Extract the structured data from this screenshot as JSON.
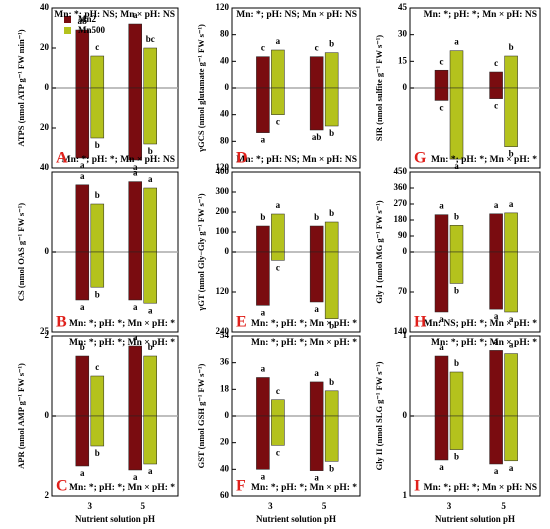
{
  "chart_data": [
    {
      "type": "bar",
      "panel": "A",
      "ylabel": "ATPS (nmol ATP g⁻¹ FW min⁻¹)",
      "annotation_top": "Mn: *; pH: NS; Mn × pH: NS",
      "annotation_bottom": "Mn: *; pH: *; Mn × pH: NS",
      "ylim": [
        -40,
        40
      ],
      "yticks": [
        40,
        20,
        0,
        {
          "value": -20,
          "label": "20"
        },
        {
          "value": -40,
          "label": "40"
        }
      ],
      "series": [
        {
          "name": "Mn2",
          "color": "#7a0c10",
          "values": [
            29,
            32
          ],
          "values_lower": [
            -35,
            -36
          ],
          "letters": [
            "ab",
            "a"
          ],
          "letters_lower": [
            "a",
            "a"
          ]
        },
        {
          "name": "Mn500",
          "color": "#b4c21d",
          "values": [
            16,
            20
          ],
          "values_lower": [
            -25,
            -28
          ],
          "letters": [
            "c",
            "bc"
          ],
          "letters_lower": [
            "b",
            "b"
          ]
        }
      ]
    },
    {
      "type": "bar",
      "panel": "B",
      "ylabel": "CS (nmol OAS g⁻¹ FW s⁻¹)",
      "annotation_bottom": "Mn: *; pH: *; Mn × pH: *",
      "ylim": [
        -25,
        25
      ],
      "yticks": [
        0,
        {
          "value": -25,
          "label": "25"
        }
      ],
      "series": [
        {
          "color": "#7a0c10",
          "values": [
            21,
            22
          ],
          "values_lower": [
            -15,
            -15
          ],
          "letters": [
            "a",
            "a"
          ],
          "letters_lower": [
            "a",
            "a"
          ]
        },
        {
          "color": "#b4c21d",
          "values": [
            15,
            20
          ],
          "values_lower": [
            -11,
            -16
          ],
          "letters": [
            "b",
            "a"
          ],
          "letters_lower": [
            "b",
            "a"
          ]
        }
      ]
    },
    {
      "type": "bar",
      "panel": "C",
      "ylabel": "APR (nmol AMP g⁻¹ FW s⁻¹)",
      "annotation_top": "Mn: *; pH: *; Mn × pH: *",
      "annotation_bottom": "Mn: *; pH: *; Mn × pH: *",
      "ylim": [
        -2,
        2
      ],
      "yticks": [
        2,
        0,
        {
          "value": -2,
          "label": "2"
        }
      ],
      "categories": [
        "3",
        "5"
      ],
      "xlabel": "Nutrient solution pH",
      "series": [
        {
          "color": "#7a0c10",
          "values": [
            1.5,
            1.75
          ],
          "values_lower": [
            -1.25,
            -1.35
          ],
          "letters": [
            "b",
            "a"
          ],
          "letters_lower": [
            "a",
            "a"
          ]
        },
        {
          "color": "#b4c21d",
          "values": [
            1.0,
            1.5
          ],
          "values_lower": [
            -0.75,
            -1.2
          ],
          "letters": [
            "c",
            "b"
          ],
          "letters_lower": [
            "b",
            "a"
          ]
        }
      ]
    },
    {
      "type": "bar",
      "panel": "D",
      "ylabel": "γGCS (nmol glutamate g⁻¹ FW s⁻¹)",
      "annotation_top": "Mn: *; pH: NS; Mn × pH: NS",
      "annotation_bottom": "Mn: *; pH: NS; Mn × pH: NS",
      "ylim": [
        -120,
        120
      ],
      "yticks": [
        120,
        80,
        40,
        0,
        {
          "value": -40,
          "label": "40"
        },
        {
          "value": -80,
          "label": "80"
        },
        {
          "value": -120,
          "label": "120"
        }
      ],
      "series": [
        {
          "color": "#7a0c10",
          "values": [
            47,
            47
          ],
          "values_lower": [
            -67,
            -63
          ],
          "letters": [
            "c",
            "c"
          ],
          "letters_lower": [
            "a",
            "ab"
          ]
        },
        {
          "color": "#b4c21d",
          "values": [
            57,
            53
          ],
          "values_lower": [
            -40,
            -57
          ],
          "letters": [
            "a",
            "b"
          ],
          "letters_lower": [
            "c",
            "b"
          ]
        }
      ]
    },
    {
      "type": "bar",
      "panel": "E",
      "ylabel": "γGT (nmol Gly−Gly g⁻¹ FW s⁻¹)",
      "annotation_bottom": "Mn: *; pH: *; Mn × pH: *",
      "ylim": [
        -240,
        400
      ],
      "yticks": [
        400,
        300,
        200,
        100,
        0,
        {
          "value": -120,
          "label": "120"
        },
        {
          "value": -240,
          "label": "240"
        }
      ],
      "series": [
        {
          "color": "#7a0c10",
          "values": [
            130,
            130
          ],
          "values_lower": [
            -160,
            -150
          ],
          "letters": [
            "b",
            "b"
          ],
          "letters_lower": [
            "a",
            "a"
          ]
        },
        {
          "color": "#b4c21d",
          "values": [
            190,
            150
          ],
          "values_lower": [
            -25,
            -200
          ],
          "letters": [
            "a",
            "b"
          ],
          "letters_lower": [
            "c",
            "b"
          ]
        }
      ]
    },
    {
      "type": "bar",
      "panel": "F",
      "ylabel": "GST (nmol GSH g⁻¹ FW s⁻¹)",
      "annotation_top": "Mn: *; pH: *; Mn × pH: *",
      "annotation_bottom": "Mn: *; pH: *; Mn × pH: *",
      "ylim": [
        -60,
        54
      ],
      "yticks": [
        54,
        36,
        18,
        0,
        {
          "value": -20,
          "label": "20"
        },
        {
          "value": -40,
          "label": "40"
        },
        {
          "value": -60,
          "label": "60"
        }
      ],
      "categories": [
        "3",
        "5"
      ],
      "xlabel": "Nutrient solution pH",
      "series": [
        {
          "color": "#7a0c10",
          "values": [
            26,
            23
          ],
          "values_lower": [
            -40,
            -41
          ],
          "letters": [
            "a",
            "a"
          ],
          "letters_lower": [
            "a",
            "a"
          ]
        },
        {
          "color": "#b4c21d",
          "values": [
            11,
            17
          ],
          "values_lower": [
            -22,
            -34
          ],
          "letters": [
            "c",
            "b"
          ],
          "letters_lower": [
            "c",
            "b"
          ]
        }
      ]
    },
    {
      "type": "bar",
      "panel": "G",
      "ylabel": "SIR (nmol sulfite g⁻¹ FW s⁻¹)",
      "annotation_top": "Mn: *; pH: *; Mn × pH: NS",
      "annotation_bottom": "Mn: *; pH: *; Mn × pH: *",
      "ylim": [
        -45,
        45
      ],
      "yticks": [
        45,
        30,
        15,
        0
      ],
      "series": [
        {
          "color": "#7a0c10",
          "values": [
            10,
            9
          ],
          "values_lower": [
            -7,
            -6
          ],
          "letters": [
            "c",
            "c"
          ],
          "letters_lower": [
            "c",
            "c"
          ]
        },
        {
          "color": "#b4c21d",
          "values": [
            21,
            18
          ],
          "values_lower": [
            -40,
            -33
          ],
          "letters": [
            "a",
            "b"
          ],
          "letters_lower": [
            "a",
            "b"
          ]
        }
      ]
    },
    {
      "type": "bar",
      "panel": "H",
      "ylabel": "Gly I (nmol MG g⁻¹ FW s⁻¹)",
      "annotation_bottom": "Mn: NS; pH: *; Mn × pH: *",
      "ylim": [
        -140,
        450
      ],
      "yticks": [
        450,
        360,
        270,
        180,
        90,
        0,
        {
          "value": -70,
          "label": "70"
        },
        {
          "value": -140,
          "label": "140"
        }
      ],
      "series": [
        {
          "color": "#7a0c10",
          "values": [
            210,
            215
          ],
          "values_lower": [
            -105,
            -100
          ],
          "letters": [
            "a",
            "a"
          ],
          "letters_lower": [
            "a",
            "a"
          ]
        },
        {
          "color": "#b4c21d",
          "values": [
            150,
            220
          ],
          "values_lower": [
            -55,
            -105
          ],
          "letters": [
            "b",
            "a"
          ],
          "letters_lower": [
            "b",
            "a"
          ]
        }
      ]
    },
    {
      "type": "bar",
      "panel": "I",
      "ylabel": "Gly II (nmol SLG g⁻¹ FW s⁻¹)",
      "annotation_top": "Mn: *; pH: *; Mn × pH: *",
      "annotation_bottom": "Mn: *; pH: *; Mn × pH: NS",
      "ylim": [
        -1,
        1
      ],
      "yticks": [
        1,
        0,
        {
          "value": -1,
          "label": "1"
        }
      ],
      "categories": [
        "3",
        "5"
      ],
      "xlabel": "Nutrient solution pH",
      "series": [
        {
          "color": "#7a0c10",
          "values": [
            0.75,
            0.82
          ],
          "values_lower": [
            -0.55,
            -0.6
          ],
          "letters": [
            "a",
            "a"
          ],
          "letters_lower": [
            "a",
            "a"
          ]
        },
        {
          "color": "#b4c21d",
          "values": [
            0.55,
            0.78
          ],
          "values_lower": [
            -0.42,
            -0.56
          ],
          "letters": [
            "b",
            "a"
          ],
          "letters_lower": [
            "b",
            "a"
          ]
        }
      ]
    }
  ]
}
